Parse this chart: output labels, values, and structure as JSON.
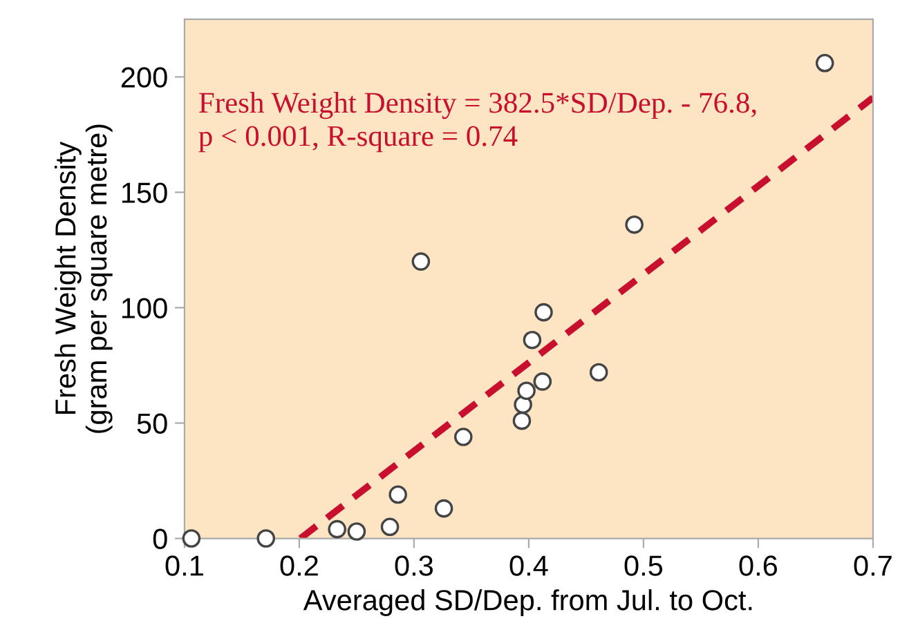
{
  "chart_data": {
    "type": "scatter",
    "xlabel": "Averaged SD/Dep. from Jul. to Oct.",
    "ylabel": "Fresh Weight Density\n(gram per square metre)",
    "xlim": [
      0.1,
      0.7
    ],
    "ylim": [
      0,
      225
    ],
    "xticks": [
      0.1,
      0.2,
      0.3,
      0.4,
      0.5,
      0.6,
      0.7
    ],
    "yticks": [
      0,
      50,
      100,
      150,
      200
    ],
    "grid": false,
    "legend": false,
    "marker": "circle",
    "annotations": [
      "Fresh Weight Density = 382.5*SD/Dep. - 76.8,\np < 0.001, R-square = 0.74"
    ],
    "series": [
      {
        "color": "#ffffff",
        "x": [
          0.106,
          0.171,
          0.233,
          0.25,
          0.279,
          0.286,
          0.306,
          0.326,
          0.343,
          0.394,
          0.395,
          0.398,
          0.403,
          0.412,
          0.413,
          0.461,
          0.492,
          0.658
        ],
        "values": [
          0,
          0,
          4,
          3,
          5,
          19,
          120,
          13,
          44,
          51,
          58,
          64,
          86,
          68,
          98,
          72,
          136,
          206
        ]
      },
      {
        "type": "line",
        "color": "#c8102e",
        "line_style": "dashed",
        "marker": "none",
        "x": [
          0.201,
          0.7
        ],
        "values": [
          0,
          191
        ]
      }
    ]
  }
}
